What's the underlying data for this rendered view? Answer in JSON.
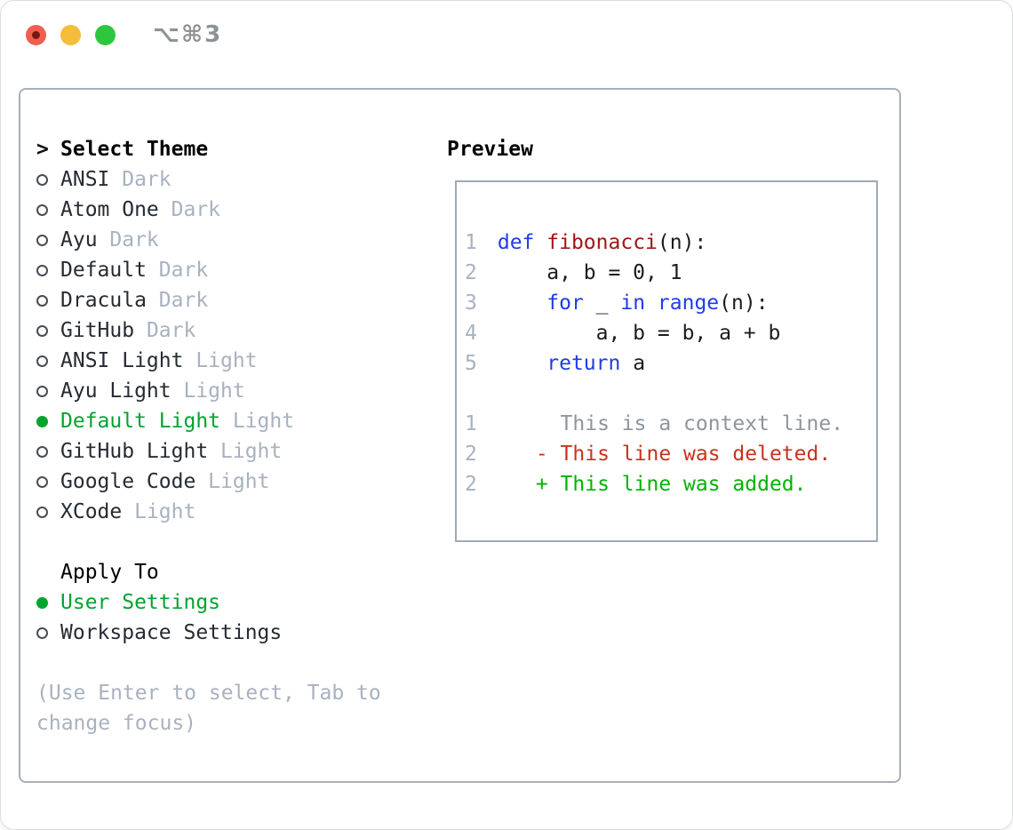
{
  "window": {
    "title": "⌥⌘3"
  },
  "theme_list": {
    "prompt": ">",
    "header": "Select Theme",
    "items": [
      {
        "name": "ANSI",
        "variant": "Dark",
        "selected": false
      },
      {
        "name": "Atom One",
        "variant": "Dark",
        "selected": false
      },
      {
        "name": "Ayu",
        "variant": "Dark",
        "selected": false
      },
      {
        "name": "Default",
        "variant": "Dark",
        "selected": false
      },
      {
        "name": "Dracula",
        "variant": "Dark",
        "selected": false
      },
      {
        "name": "GitHub",
        "variant": "Dark",
        "selected": false
      },
      {
        "name": "ANSI Light",
        "variant": "Light",
        "selected": false
      },
      {
        "name": "Ayu Light",
        "variant": "Light",
        "selected": false
      },
      {
        "name": "Default Light",
        "variant": "Light",
        "selected": true
      },
      {
        "name": "GitHub Light",
        "variant": "Light",
        "selected": false
      },
      {
        "name": "Google Code",
        "variant": "Light",
        "selected": false
      },
      {
        "name": "XCode",
        "variant": "Light",
        "selected": false
      }
    ]
  },
  "apply_to": {
    "header": "Apply To",
    "options": [
      {
        "label": "User Settings",
        "selected": true
      },
      {
        "label": "Workspace Settings",
        "selected": false
      }
    ]
  },
  "help_text": "(Use Enter to select, Tab to change focus)",
  "preview": {
    "header": "Preview",
    "code_lines": [
      {
        "num": "1",
        "tokens": [
          {
            "t": "def",
            "c": "kw"
          },
          {
            "t": " ",
            "c": "pl"
          },
          {
            "t": "fibonacci",
            "c": "fn"
          },
          {
            "t": "(n):",
            "c": "pl"
          }
        ]
      },
      {
        "num": "2",
        "tokens": [
          {
            "t": "    a, b = 0, 1",
            "c": "pl"
          }
        ]
      },
      {
        "num": "3",
        "tokens": [
          {
            "t": "    ",
            "c": "pl"
          },
          {
            "t": "for",
            "c": "kw"
          },
          {
            "t": " _ ",
            "c": "pl"
          },
          {
            "t": "in",
            "c": "kw"
          },
          {
            "t": " ",
            "c": "pl"
          },
          {
            "t": "range",
            "c": "kw"
          },
          {
            "t": "(n):",
            "c": "pl"
          }
        ]
      },
      {
        "num": "4",
        "tokens": [
          {
            "t": "        a, b = b, a + b",
            "c": "pl"
          }
        ]
      },
      {
        "num": "5",
        "tokens": [
          {
            "t": "    ",
            "c": "pl"
          },
          {
            "t": "return",
            "c": "kw"
          },
          {
            "t": " a",
            "c": "pl"
          }
        ]
      }
    ],
    "diff_lines": [
      {
        "num": "1",
        "marker": " ",
        "text": "This is a context line.",
        "kind": "context"
      },
      {
        "num": "2",
        "marker": "-",
        "text": "This line was deleted.",
        "kind": "deleted"
      },
      {
        "num": "2",
        "marker": "+",
        "text": "This line was added.",
        "kind": "added"
      }
    ]
  },
  "colors": {
    "accent_green": "#00a42e",
    "diff_added": "#00b303",
    "diff_deleted": "#c7331d",
    "diff_context": "#8d959e",
    "keyword_blue": "#1f3ce6",
    "function_red": "#a31515",
    "muted_gray": "#a8b2bf",
    "panel_border": "#a7b0ba",
    "traffic_red": "#f25d52",
    "traffic_yellow": "#f5bd39",
    "traffic_green": "#2dc73d"
  }
}
